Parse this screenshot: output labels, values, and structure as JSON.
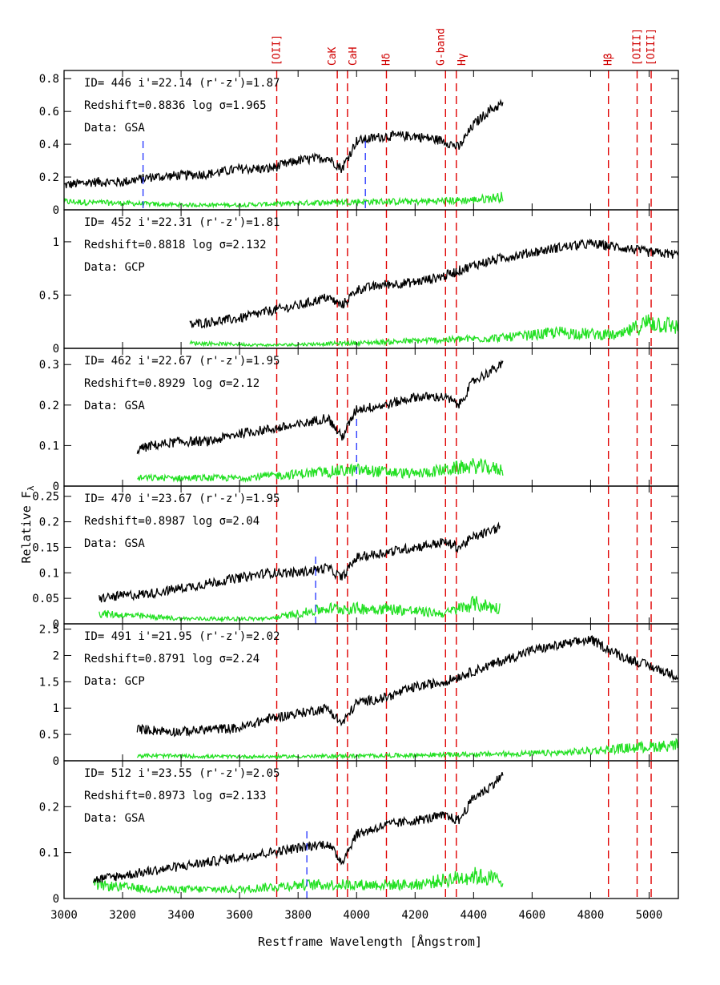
{
  "chart_data": {
    "type": "line",
    "xlabel": "Restframe Wavelength [Ångstrom]",
    "ylabel": "Relative F",
    "ylabel_sub": "λ",
    "xlim": [
      3000,
      5100
    ],
    "x_ticks": [
      3000,
      3200,
      3400,
      3600,
      3800,
      4000,
      4200,
      4400,
      4600,
      4800,
      5000
    ],
    "x_tick_labels": [
      "3000",
      "3200",
      "3400",
      "3600",
      "3800",
      "4000",
      "4200",
      "4400",
      "4600",
      "4800",
      "5000"
    ],
    "spectral_lines": [
      {
        "label": "[OII]",
        "wavelength": 3727
      },
      {
        "label": "CaK",
        "wavelength": 3934
      },
      {
        "label": "CaH",
        "wavelength": 3969
      },
      {
        "label": "Hδ",
        "wavelength": 4102
      },
      {
        "label": "G-band",
        "wavelength": 4304
      },
      {
        "label": "Hγ",
        "wavelength": 4341
      },
      {
        "label": "Hβ",
        "wavelength": 4861
      },
      {
        "label": "[OIII]",
        "wavelength": 4959
      },
      {
        "label": "[OIII]",
        "wavelength": 5007
      }
    ],
    "panels": [
      {
        "id_line": "ID= 446   i'=22.14  (r'-z')=1.87",
        "z_line": "Redshift=0.8836   log σ=1.965",
        "data_line": "Data: GSA",
        "ylim": [
          0,
          0.85
        ],
        "y_ticks": [
          0,
          0.2,
          0.4,
          0.6,
          0.8
        ],
        "y_tick_labels": [
          "0",
          "0.2",
          "0.4",
          "0.6",
          "0.8"
        ],
        "x_range": [
          3000,
          4500
        ],
        "blue_lines": [
          3270,
          4030
        ],
        "flux": [
          [
            3000,
            0.15
          ],
          [
            3100,
            0.17
          ],
          [
            3200,
            0.17
          ],
          [
            3300,
            0.2
          ],
          [
            3400,
            0.21
          ],
          [
            3500,
            0.22
          ],
          [
            3600,
            0.25
          ],
          [
            3700,
            0.25
          ],
          [
            3800,
            0.3
          ],
          [
            3900,
            0.32
          ],
          [
            3950,
            0.25
          ],
          [
            4000,
            0.42
          ],
          [
            4100,
            0.45
          ],
          [
            4200,
            0.45
          ],
          [
            4300,
            0.42
          ],
          [
            4350,
            0.38
          ],
          [
            4400,
            0.52
          ],
          [
            4450,
            0.6
          ],
          [
            4500,
            0.65
          ]
        ],
        "error": [
          [
            3000,
            0.05
          ],
          [
            3200,
            0.04
          ],
          [
            3400,
            0.03
          ],
          [
            3600,
            0.03
          ],
          [
            3800,
            0.04
          ],
          [
            4000,
            0.05
          ],
          [
            4200,
            0.05
          ],
          [
            4400,
            0.06
          ],
          [
            4500,
            0.08
          ]
        ]
      },
      {
        "id_line": "ID= 452   i'=22.31  (r'-z')=1.81",
        "z_line": "Redshift=0.8818   log σ=2.132",
        "data_line": "Data: GCP",
        "ylim": [
          0,
          1.3
        ],
        "y_ticks": [
          0,
          0.5,
          1
        ],
        "y_tick_labels": [
          "0",
          "0.5",
          "1"
        ],
        "x_range": [
          3430,
          5100
        ],
        "blue_lines": [],
        "flux": [
          [
            3430,
            0.22
          ],
          [
            3500,
            0.25
          ],
          [
            3600,
            0.28
          ],
          [
            3700,
            0.35
          ],
          [
            3800,
            0.4
          ],
          [
            3900,
            0.48
          ],
          [
            3950,
            0.4
          ],
          [
            4000,
            0.55
          ],
          [
            4100,
            0.6
          ],
          [
            4200,
            0.62
          ],
          [
            4300,
            0.68
          ],
          [
            4400,
            0.78
          ],
          [
            4500,
            0.85
          ],
          [
            4600,
            0.9
          ],
          [
            4700,
            0.95
          ],
          [
            4800,
            0.98
          ],
          [
            4900,
            0.95
          ],
          [
            5000,
            0.9
          ],
          [
            5100,
            0.88
          ]
        ],
        "error": [
          [
            3430,
            0.05
          ],
          [
            3700,
            0.03
          ],
          [
            4000,
            0.05
          ],
          [
            4300,
            0.08
          ],
          [
            4500,
            0.1
          ],
          [
            4700,
            0.15
          ],
          [
            4900,
            0.12
          ],
          [
            5000,
            0.25
          ],
          [
            5100,
            0.2
          ]
        ]
      },
      {
        "id_line": "ID= 462   i'=22.67  (r'-z')=1.95",
        "z_line": "Redshift=0.8929   log σ=2.12",
        "data_line": "Data: GSA",
        "ylim": [
          0,
          0.34
        ],
        "y_ticks": [
          0,
          0.1,
          0.2,
          0.3
        ],
        "y_tick_labels": [
          "0",
          "0.1",
          "0.2",
          "0.3"
        ],
        "x_range": [
          3250,
          4500
        ],
        "blue_lines": [
          4000
        ],
        "flux": [
          [
            3250,
            0.09
          ],
          [
            3300,
            0.1
          ],
          [
            3400,
            0.11
          ],
          [
            3500,
            0.11
          ],
          [
            3600,
            0.13
          ],
          [
            3700,
            0.14
          ],
          [
            3800,
            0.15
          ],
          [
            3900,
            0.17
          ],
          [
            3950,
            0.12
          ],
          [
            4000,
            0.19
          ],
          [
            4100,
            0.2
          ],
          [
            4200,
            0.22
          ],
          [
            4300,
            0.22
          ],
          [
            4350,
            0.2
          ],
          [
            4400,
            0.26
          ],
          [
            4450,
            0.28
          ],
          [
            4500,
            0.3
          ]
        ],
        "error": [
          [
            3250,
            0.02
          ],
          [
            3400,
            0.02
          ],
          [
            3600,
            0.02
          ],
          [
            3800,
            0.03
          ],
          [
            4000,
            0.04
          ],
          [
            4200,
            0.03
          ],
          [
            4400,
            0.05
          ],
          [
            4500,
            0.04
          ]
        ]
      },
      {
        "id_line": "ID= 470   i'=23.67  (r'-z')=1.95",
        "z_line": "Redshift=0.8987   log σ=2.04",
        "data_line": "Data: GSA",
        "ylim": [
          0,
          0.27
        ],
        "y_ticks": [
          0,
          0.05,
          0.1,
          0.15,
          0.2,
          0.25
        ],
        "y_tick_labels": [
          "0",
          "0.05",
          "0.1",
          "0.15",
          "0.2",
          "0.25"
        ],
        "x_range": [
          3120,
          4490
        ],
        "blue_lines": [
          3860
        ],
        "flux": [
          [
            3120,
            0.05
          ],
          [
            3200,
            0.055
          ],
          [
            3300,
            0.06
          ],
          [
            3400,
            0.07
          ],
          [
            3500,
            0.08
          ],
          [
            3600,
            0.09
          ],
          [
            3700,
            0.1
          ],
          [
            3800,
            0.1
          ],
          [
            3900,
            0.11
          ],
          [
            3950,
            0.09
          ],
          [
            4000,
            0.13
          ],
          [
            4100,
            0.14
          ],
          [
            4200,
            0.15
          ],
          [
            4300,
            0.16
          ],
          [
            4350,
            0.15
          ],
          [
            4400,
            0.17
          ],
          [
            4450,
            0.18
          ],
          [
            4490,
            0.19
          ]
        ],
        "error": [
          [
            3120,
            0.02
          ],
          [
            3400,
            0.01
          ],
          [
            3700,
            0.01
          ],
          [
            3900,
            0.03
          ],
          [
            4100,
            0.03
          ],
          [
            4300,
            0.02
          ],
          [
            4400,
            0.04
          ],
          [
            4490,
            0.03
          ]
        ]
      },
      {
        "id_line": "ID= 491   i'=21.95  (r'-z')=2.02",
        "z_line": "Redshift=0.8791   log σ=2.24",
        "data_line": "Data: GCP",
        "ylim": [
          0,
          2.6
        ],
        "y_ticks": [
          0,
          0.5,
          1,
          1.5,
          2,
          2.5
        ],
        "y_tick_labels": [
          "0",
          "0.5",
          "1",
          "1.5",
          "2",
          "2.5"
        ],
        "x_range": [
          3250,
          5100
        ],
        "blue_lines": [],
        "flux": [
          [
            3250,
            0.6
          ],
          [
            3400,
            0.55
          ],
          [
            3500,
            0.6
          ],
          [
            3600,
            0.62
          ],
          [
            3700,
            0.8
          ],
          [
            3800,
            0.9
          ],
          [
            3900,
            1.0
          ],
          [
            3950,
            0.7
          ],
          [
            4000,
            1.1
          ],
          [
            4100,
            1.2
          ],
          [
            4200,
            1.4
          ],
          [
            4300,
            1.5
          ],
          [
            4400,
            1.7
          ],
          [
            4500,
            1.9
          ],
          [
            4600,
            2.1
          ],
          [
            4700,
            2.2
          ],
          [
            4800,
            2.3
          ],
          [
            4900,
            2.0
          ],
          [
            5000,
            1.8
          ],
          [
            5100,
            1.6
          ]
        ],
        "error": [
          [
            3250,
            0.1
          ],
          [
            3500,
            0.08
          ],
          [
            3800,
            0.08
          ],
          [
            4100,
            0.1
          ],
          [
            4400,
            0.12
          ],
          [
            4700,
            0.15
          ],
          [
            4950,
            0.25
          ],
          [
            5100,
            0.3
          ]
        ]
      },
      {
        "id_line": "ID= 512   i'=23.55  (r'-z')=2.05",
        "z_line": "Redshift=0.8973   log σ=2.133",
        "data_line": "Data: GSA",
        "ylim": [
          0,
          0.3
        ],
        "y_ticks": [
          0,
          0.1,
          0.2
        ],
        "y_tick_labels": [
          "0",
          "0.1",
          "0.2"
        ],
        "x_range": [
          3100,
          4500
        ],
        "blue_lines": [
          3830
        ],
        "flux": [
          [
            3100,
            0.04
          ],
          [
            3200,
            0.05
          ],
          [
            3300,
            0.06
          ],
          [
            3400,
            0.07
          ],
          [
            3500,
            0.08
          ],
          [
            3600,
            0.09
          ],
          [
            3700,
            0.1
          ],
          [
            3800,
            0.11
          ],
          [
            3900,
            0.12
          ],
          [
            3950,
            0.08
          ],
          [
            4000,
            0.14
          ],
          [
            4100,
            0.16
          ],
          [
            4200,
            0.17
          ],
          [
            4300,
            0.18
          ],
          [
            4350,
            0.17
          ],
          [
            4400,
            0.22
          ],
          [
            4450,
            0.24
          ],
          [
            4500,
            0.27
          ]
        ],
        "error": [
          [
            3100,
            0.03
          ],
          [
            3300,
            0.02
          ],
          [
            3600,
            0.02
          ],
          [
            3800,
            0.03
          ],
          [
            4000,
            0.03
          ],
          [
            4200,
            0.03
          ],
          [
            4400,
            0.05
          ],
          [
            4500,
            0.04
          ]
        ]
      }
    ]
  }
}
